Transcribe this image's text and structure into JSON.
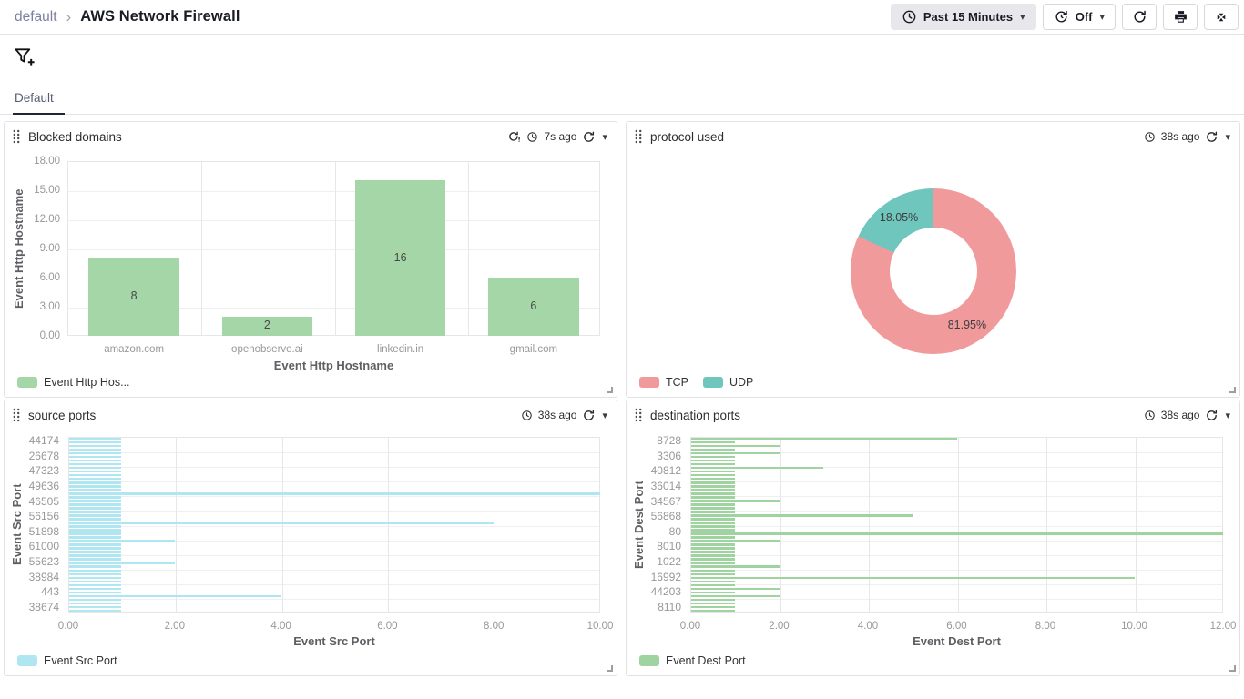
{
  "app": {
    "breadcrumb": {
      "folder": "default",
      "title": "AWS Network Firewall"
    },
    "toolbar": {
      "time_range_label": "Past 15 Minutes",
      "auto_refresh_label": "Off"
    },
    "tabs": [
      {
        "label": "Default",
        "active": true
      }
    ],
    "icons": {
      "chevron_right": "›",
      "caret_down": "▾",
      "clock": "outlined clock circle",
      "refresh": "circular arrow",
      "refresh_timer": "circular arrow with clock hands",
      "refresh_alert": "circular arrow with exclamation",
      "print": "printer glyph",
      "exit_fullscreen": "four arrows pointing inward",
      "filter_add": "funnel with plus",
      "drag_handle": "2x4 dot grid",
      "resize_handle": "corner L lines"
    }
  },
  "panels": [
    {
      "title": "Blocked domains",
      "last_refreshed": "7s ago",
      "stale": true
    },
    {
      "title": "protocol used",
      "last_refreshed": "38s ago",
      "stale": false
    },
    {
      "title": "source ports",
      "last_refreshed": "38s ago",
      "stale": false
    },
    {
      "title": "destination ports",
      "last_refreshed": "38s ago",
      "stale": false
    }
  ],
  "chart_data": [
    {
      "panel": "Blocked domains",
      "type": "bar",
      "categories": [
        "amazon.com",
        "openobserve.ai",
        "linkedin.in",
        "gmail.com"
      ],
      "values": [
        8,
        2,
        16,
        6
      ],
      "bar_labels": [
        "8",
        "2",
        "16",
        "6"
      ],
      "ylim": [
        0,
        18
      ],
      "yticks": [
        "0.00",
        "3.00",
        "6.00",
        "9.00",
        "12.00",
        "15.00",
        "18.00"
      ],
      "xlabel": "Event Http Hostname",
      "ylabel": "Event Http Hostname",
      "color": "#a5d6a7",
      "grid": true,
      "legend_position": "bottom",
      "legend": [
        {
          "label": "Event Http Hos...",
          "color": "#a5d6a7"
        }
      ]
    },
    {
      "panel": "protocol used",
      "type": "pie",
      "donut": true,
      "slices": [
        {
          "name": "TCP",
          "pct": 81.95,
          "label": "81.95%",
          "color": "#f19a9c"
        },
        {
          "name": "UDP",
          "pct": 18.05,
          "label": "18.05%",
          "color": "#6fc6bd"
        }
      ],
      "legend_position": "bottom",
      "legend": [
        {
          "label": "TCP",
          "color": "#f19a9c"
        },
        {
          "label": "UDP",
          "color": "#6fc6bd"
        }
      ]
    },
    {
      "panel": "source ports",
      "type": "hbar",
      "row_count": 48,
      "base_value": 1,
      "port_labels": [
        "44174",
        "26678",
        "47323",
        "49636",
        "46505",
        "56156",
        "51898",
        "61000",
        "55623",
        "38984",
        "443",
        "38674"
      ],
      "long_bars": [
        {
          "row": 15,
          "value": 10
        },
        {
          "row": 23,
          "value": 8
        },
        {
          "row": 28,
          "value": 2
        },
        {
          "row": 34,
          "value": 2
        },
        {
          "row": 43,
          "value": 4
        }
      ],
      "xlim": [
        0,
        10
      ],
      "xticks": [
        "0.00",
        "2.00",
        "4.00",
        "6.00",
        "8.00",
        "10.00"
      ],
      "xlabel": "Event Src Port",
      "ylabel": "Event Src Port",
      "color": "#aee7f1",
      "grid": true,
      "legend_position": "bottom",
      "legend": [
        {
          "label": "Event Src Port",
          "color": "#aee7f1"
        }
      ]
    },
    {
      "panel": "destination ports",
      "type": "hbar",
      "row_count": 48,
      "base_value": 1,
      "port_labels": [
        "8728",
        "3306",
        "40812",
        "36014",
        "34567",
        "56868",
        "80",
        "8010",
        "1022",
        "16992",
        "44203",
        "8110"
      ],
      "long_bars": [
        {
          "row": 0,
          "value": 6
        },
        {
          "row": 2,
          "value": 2
        },
        {
          "row": 4,
          "value": 2
        },
        {
          "row": 8,
          "value": 3
        },
        {
          "row": 17,
          "value": 2
        },
        {
          "row": 21,
          "value": 5
        },
        {
          "row": 26,
          "value": 12
        },
        {
          "row": 28,
          "value": 2
        },
        {
          "row": 35,
          "value": 2
        },
        {
          "row": 38,
          "value": 10
        },
        {
          "row": 41,
          "value": 2
        },
        {
          "row": 43,
          "value": 2
        }
      ],
      "xlim": [
        0,
        12
      ],
      "xticks": [
        "0.00",
        "2.00",
        "4.00",
        "6.00",
        "8.00",
        "10.00",
        "12.00"
      ],
      "xlabel": "Event Dest Port",
      "ylabel": "Event Dest Port",
      "color": "#9fd3a0",
      "grid": true,
      "legend_position": "bottom",
      "legend": [
        {
          "label": "Event Dest Port",
          "color": "#9fd3a0"
        }
      ]
    }
  ]
}
